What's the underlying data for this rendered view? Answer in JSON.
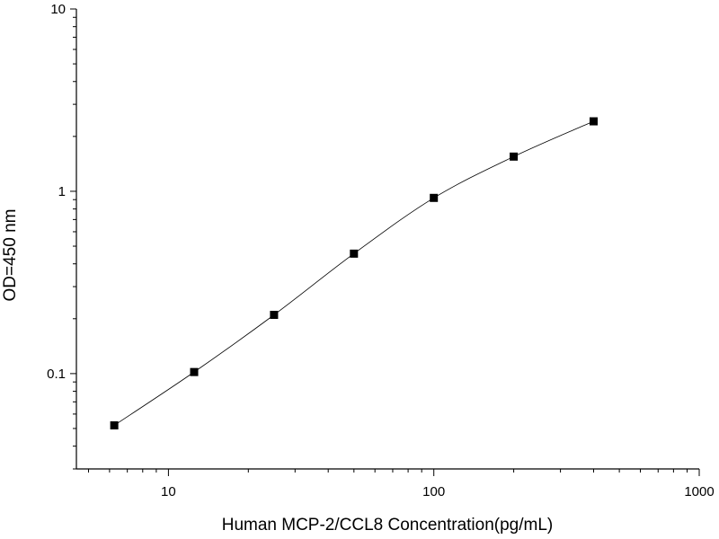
{
  "chart_data": {
    "type": "line",
    "title": "",
    "xlabel": "Human MCP-2/CCL8 Concentration(pg/mL)",
    "ylabel": "OD=450 nm",
    "x_scale": "log",
    "y_scale": "log",
    "xlim": [
      4.5,
      1000
    ],
    "ylim": [
      0.03,
      10
    ],
    "x_ticks": [
      {
        "value": 10,
        "label": "10"
      },
      {
        "value": 100,
        "label": "100"
      },
      {
        "value": 1000,
        "label": "1000"
      }
    ],
    "y_ticks": [
      {
        "value": 0.1,
        "label": "0.1"
      },
      {
        "value": 1,
        "label": "1"
      },
      {
        "value": 10,
        "label": "10"
      }
    ],
    "grid": false,
    "legend": "none",
    "marker": "square",
    "color": "#000000",
    "series": [
      {
        "x": [
          6.25,
          12.5,
          25,
          50,
          100,
          200,
          400
        ],
        "y": [
          0.052,
          0.102,
          0.21,
          0.455,
          0.92,
          1.55,
          2.42
        ]
      }
    ]
  }
}
